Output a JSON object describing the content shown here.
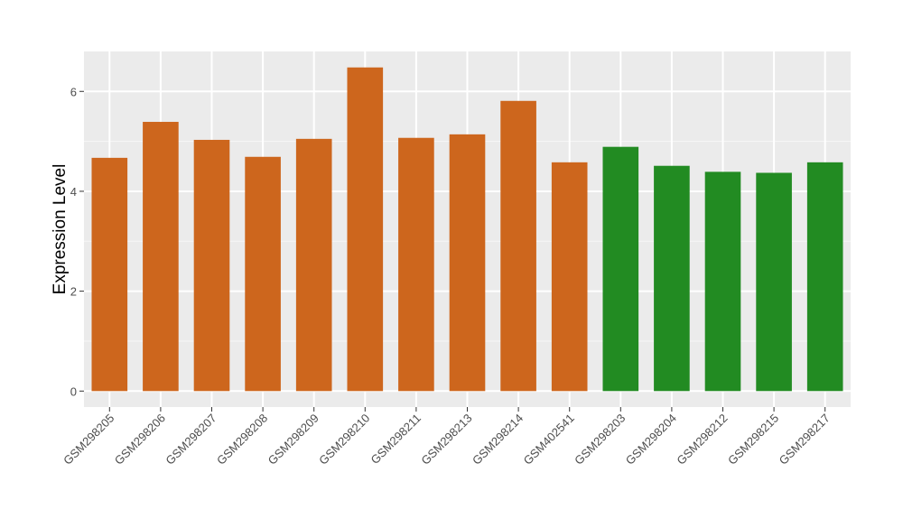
{
  "chart_data": {
    "type": "bar",
    "title": "",
    "xlabel": "",
    "ylabel": "Expression Level",
    "categories": [
      "GSM298205",
      "GSM298206",
      "GSM298207",
      "GSM298208",
      "GSM298209",
      "GSM298210",
      "GSM298211",
      "GSM298213",
      "GSM298214",
      "GSM402541",
      "GSM298203",
      "GSM298204",
      "GSM298212",
      "GSM298215",
      "GSM298217"
    ],
    "values": [
      4.67,
      5.39,
      5.03,
      4.69,
      5.05,
      6.48,
      5.07,
      5.14,
      5.81,
      4.58,
      4.89,
      4.51,
      4.39,
      4.37,
      4.58
    ],
    "bar_colors": [
      "#cd661d",
      "#cd661d",
      "#cd661d",
      "#cd661d",
      "#cd661d",
      "#cd661d",
      "#cd661d",
      "#cd661d",
      "#cd661d",
      "#cd661d",
      "#228b22",
      "#228b22",
      "#228b22",
      "#228b22",
      "#228b22"
    ],
    "yticks": [
      0,
      2,
      4,
      6
    ],
    "ylim": [
      -0.32,
      6.8
    ],
    "grid": true,
    "panel_background": "#ebebeb",
    "legend": "none"
  }
}
